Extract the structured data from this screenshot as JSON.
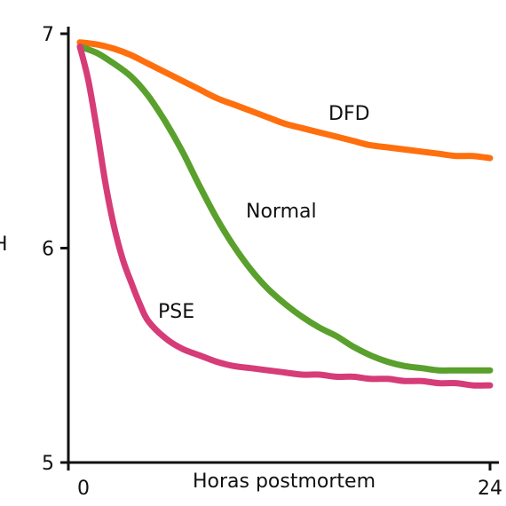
{
  "chart_data": {
    "type": "line",
    "title": "",
    "xlabel": "Horas postmortem",
    "ylabel": "pH",
    "xlim": [
      0,
      24
    ],
    "ylim": [
      5,
      7
    ],
    "x_ticks": [
      {
        "value": 0,
        "label": "0"
      },
      {
        "value": 24,
        "label": "24"
      }
    ],
    "y_ticks": [
      {
        "value": 7,
        "label": "7"
      },
      {
        "value": 6,
        "label": "6"
      },
      {
        "value": 5,
        "label": "5"
      }
    ],
    "grid": false,
    "legend": "none (curves labeled directly)",
    "series": [
      {
        "name": "DFD",
        "color": "#ff6f0e",
        "x": [
          0,
          1,
          2,
          3,
          4,
          5,
          6,
          7,
          8,
          9,
          10,
          11,
          12,
          13,
          14,
          15,
          16,
          17,
          18,
          19,
          20,
          21,
          22,
          23,
          24
        ],
        "y": [
          6.96,
          6.95,
          6.93,
          6.9,
          6.86,
          6.82,
          6.78,
          6.74,
          6.7,
          6.67,
          6.64,
          6.61,
          6.58,
          6.56,
          6.54,
          6.52,
          6.5,
          6.48,
          6.47,
          6.46,
          6.45,
          6.44,
          6.43,
          6.43,
          6.42
        ]
      },
      {
        "name": "Normal",
        "color": "#5aa02c",
        "x": [
          0,
          1,
          2,
          3,
          4,
          5,
          6,
          7,
          8,
          9,
          10,
          11,
          12,
          13,
          14,
          15,
          16,
          17,
          18,
          19,
          20,
          21,
          22,
          23,
          24
        ],
        "y": [
          6.94,
          6.91,
          6.86,
          6.8,
          6.71,
          6.59,
          6.45,
          6.29,
          6.14,
          6.01,
          5.9,
          5.81,
          5.74,
          5.68,
          5.63,
          5.59,
          5.54,
          5.5,
          5.47,
          5.45,
          5.44,
          5.43,
          5.43,
          5.43,
          5.43
        ]
      },
      {
        "name": "PSE",
        "color": "#d63c78",
        "x": [
          0,
          0.5,
          1,
          1.5,
          2,
          2.5,
          3,
          3.5,
          4,
          5,
          6,
          7,
          8,
          9,
          10,
          11,
          12,
          13,
          14,
          15,
          16,
          17,
          18,
          19,
          20,
          21,
          22,
          23,
          24
        ],
        "y": [
          6.94,
          6.78,
          6.55,
          6.3,
          6.1,
          5.95,
          5.84,
          5.74,
          5.66,
          5.58,
          5.53,
          5.5,
          5.47,
          5.45,
          5.44,
          5.43,
          5.42,
          5.41,
          5.41,
          5.4,
          5.4,
          5.39,
          5.39,
          5.38,
          5.38,
          5.37,
          5.37,
          5.36,
          5.36
        ]
      }
    ]
  }
}
